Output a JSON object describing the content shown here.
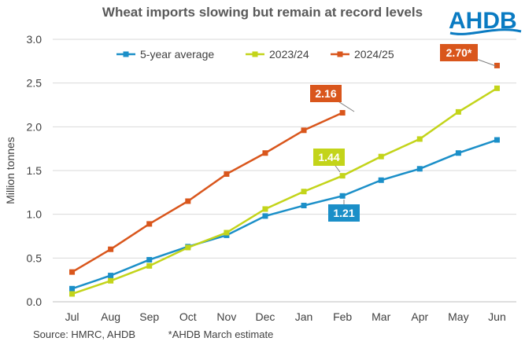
{
  "title": "Wheat imports slowing but remain at record levels",
  "brand": {
    "logo_text": "AHDB",
    "color": "#0a7bc2"
  },
  "footnote": {
    "source": "Source: HMRC, AHDB",
    "note": "*AHDB March estimate"
  },
  "chart_data": {
    "type": "line",
    "title": "Wheat imports slowing but remain at record levels",
    "xlabel": "",
    "ylabel": "Million tonnes",
    "ylim": [
      0,
      3.0
    ],
    "yticks": [
      "0.0",
      "0.5",
      "1.0",
      "1.5",
      "2.0",
      "2.5",
      "3.0"
    ],
    "ytick_values": [
      0,
      0.5,
      1.0,
      1.5,
      2.0,
      2.5,
      3.0
    ],
    "categories": [
      "Jul",
      "Aug",
      "Sep",
      "Oct",
      "Nov",
      "Dec",
      "Jan",
      "Feb",
      "Mar",
      "Apr",
      "May",
      "Jun"
    ],
    "grid": true,
    "legend_position": "top",
    "series": [
      {
        "name": "5-year average",
        "color": "#1b8fc8",
        "values": [
          0.15,
          0.3,
          0.48,
          0.63,
          0.76,
          0.98,
          1.1,
          1.21,
          1.39,
          1.52,
          1.7,
          1.85
        ]
      },
      {
        "name": "2023/24",
        "color": "#c3d41a",
        "values": [
          0.09,
          0.24,
          0.41,
          0.62,
          0.79,
          1.06,
          1.26,
          1.44,
          1.66,
          1.86,
          2.17,
          2.44
        ]
      },
      {
        "name": "2024/25",
        "color": "#d9561c",
        "values": [
          0.34,
          0.6,
          0.89,
          1.15,
          1.46,
          1.7,
          1.96,
          2.16,
          null,
          null,
          null,
          null
        ]
      }
    ],
    "estimate": {
      "series": "2024/25",
      "category": "Jun",
      "value": 2.7,
      "color": "#d9561c"
    },
    "annotations": [
      {
        "text": "2.16",
        "series": "2024/25",
        "category": "Feb",
        "color": "#d9561c"
      },
      {
        "text": "1.44",
        "series": "2023/24",
        "category": "Feb",
        "color": "#c3d41a"
      },
      {
        "text": "1.21",
        "series": "5-year average",
        "category": "Feb",
        "color": "#1b8fc8"
      },
      {
        "text": "2.70*",
        "series": "2024/25",
        "category": "Jun",
        "color": "#d9561c"
      }
    ]
  }
}
